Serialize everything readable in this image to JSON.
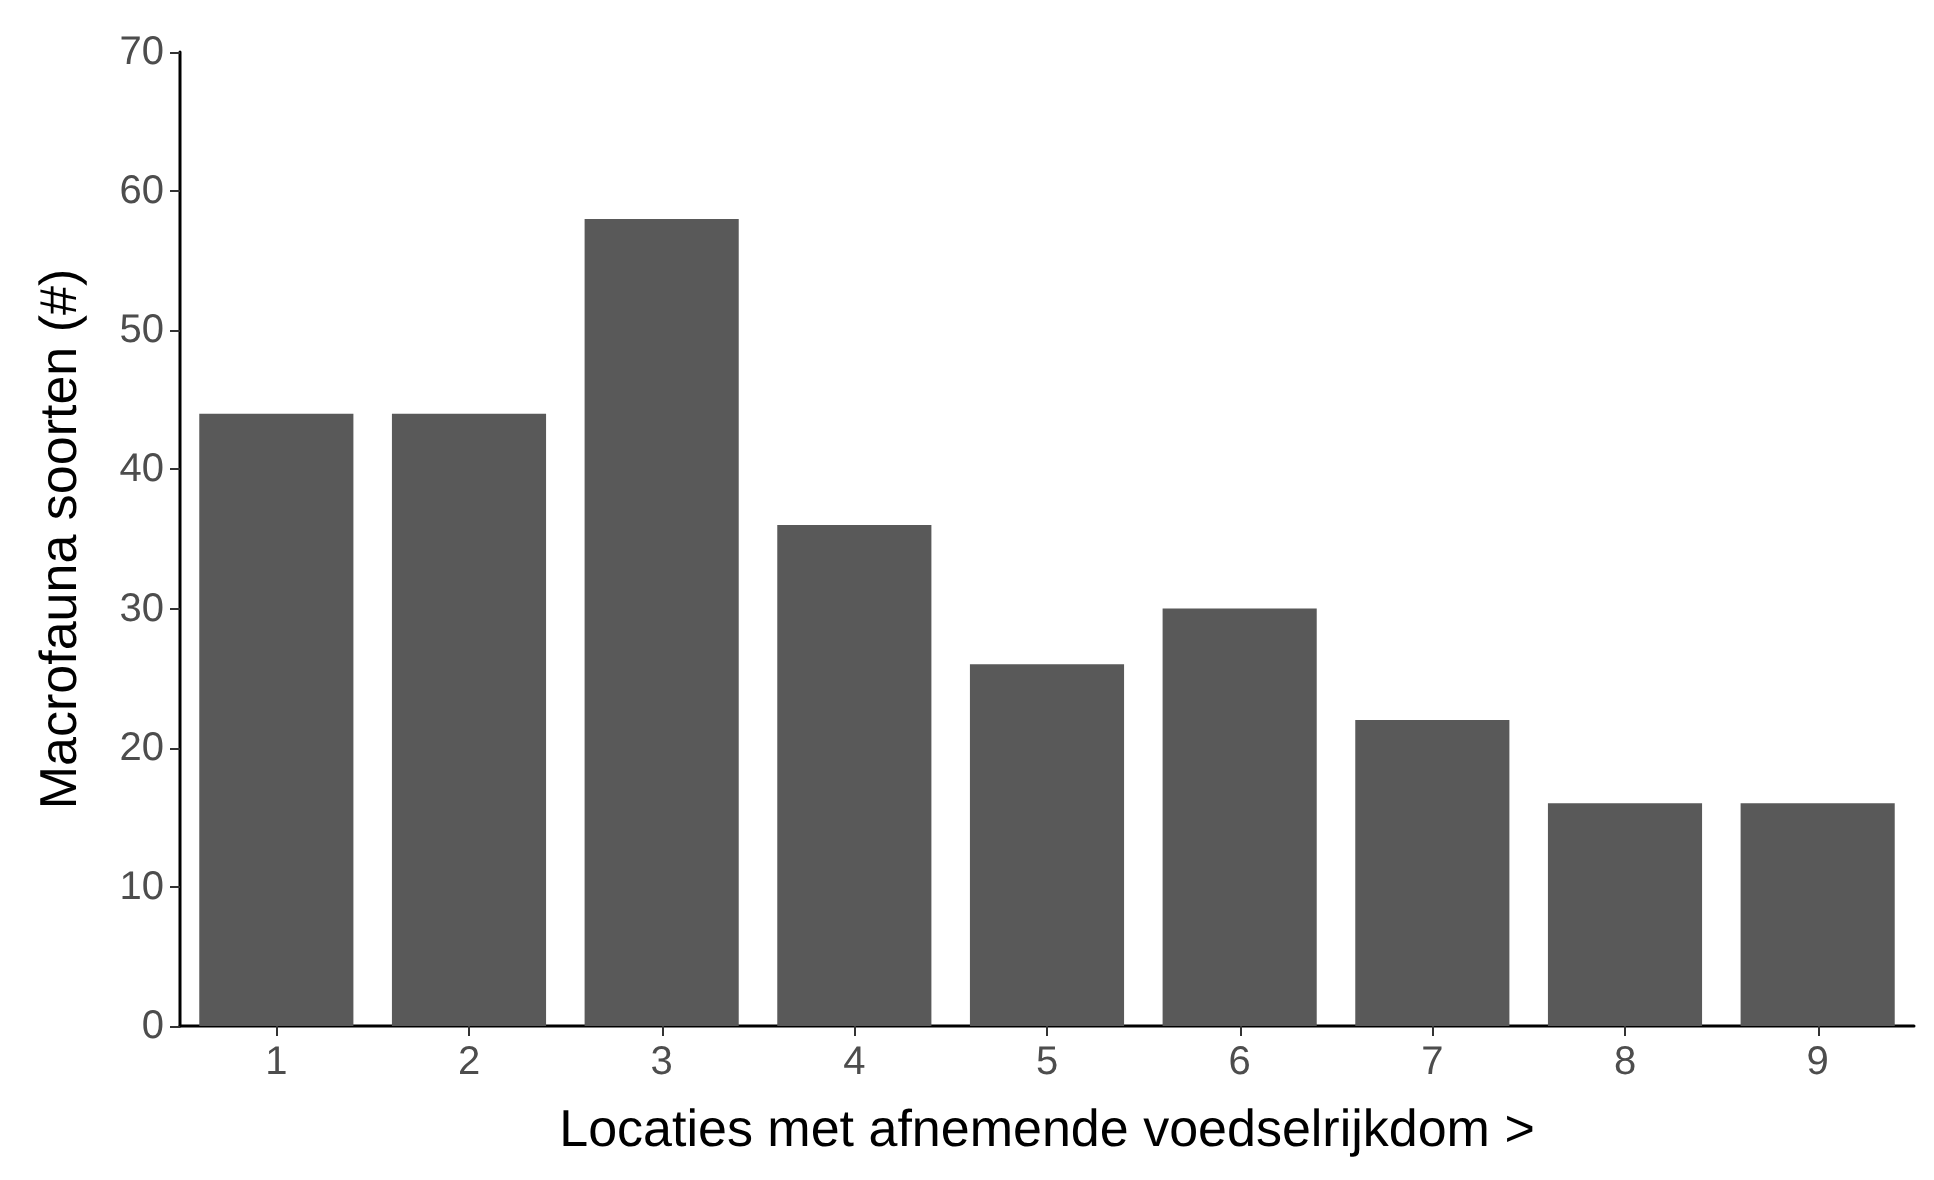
{
  "chart_data": {
    "type": "bar",
    "xlabel": "Locaties met afnemende voedselrijkdom >",
    "ylabel": "Macrofauna soorten (#)",
    "categories": [
      "1",
      "2",
      "3",
      "4",
      "5",
      "6",
      "7",
      "8",
      "9"
    ],
    "values": [
      44,
      44,
      58,
      36,
      26,
      30,
      22,
      16,
      16
    ],
    "color": "#595959",
    "ylim": [
      0,
      70
    ],
    "yticks": [
      0,
      10,
      20,
      30,
      40,
      50,
      60,
      70
    ],
    "grid": false
  }
}
